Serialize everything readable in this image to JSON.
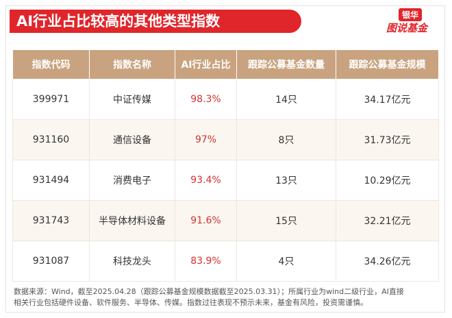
{
  "header": {
    "title": "AI行业占比较高的其他类型指数",
    "logo_brand": "银华",
    "logo_sub": "图说基金"
  },
  "table": {
    "columns": [
      "指数代码",
      "指数名称",
      "AI行业占比",
      "跟踪公募基金数量",
      "跟踪公募基金规模"
    ],
    "rows": [
      [
        "399971",
        "中证传媒",
        "98.3%",
        "14只",
        "34.17亿元"
      ],
      [
        "931160",
        "通信设备",
        "97%",
        "8只",
        "31.73亿元"
      ],
      [
        "931494",
        "消费电子",
        "93.4%",
        "13只",
        "10.29亿元"
      ],
      [
        "931743",
        "半导体材料设备",
        "91.6%",
        "15只",
        "32.21亿元"
      ],
      [
        "931087",
        "科技龙头",
        "83.9%",
        "4只",
        "34.26亿元"
      ]
    ]
  },
  "footnote": [
    "数据来源：Wind，截至2025.04.28（跟踪公募基金规模数据截至2025.03.31）；所属行业为wind二级行业，AI直接",
    "相关行业包括硬件设备、软件服务、半导体、传媒。指数过往表现不预示未来，基金有风险，投资需谨慎。"
  ]
}
